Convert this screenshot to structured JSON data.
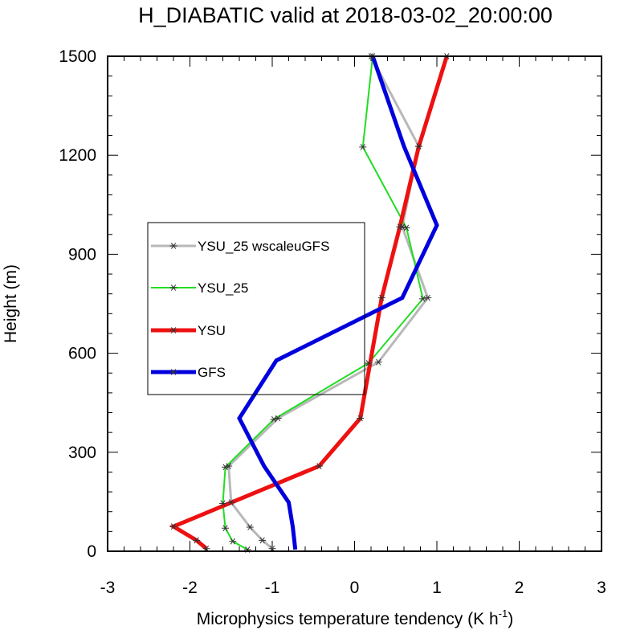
{
  "chart_data": {
    "type": "line",
    "title": "H_DIABATIC valid at 2018-03-02_20:00:00",
    "xlabel": "Microphysics temperature tendency (K h",
    "xlabel_sup": "-1",
    "xlabel_end": ")",
    "ylabel": "Height (m)",
    "xlim": [
      -3,
      3
    ],
    "ylim": [
      0,
      1500
    ],
    "xticks": [
      -3,
      -2,
      -1,
      0,
      1,
      2,
      3
    ],
    "xtick_labels": [
      "-3",
      "-2",
      "-1",
      "0",
      "1",
      "2",
      "3"
    ],
    "yticks": [
      0,
      300,
      600,
      900,
      1200,
      1500
    ],
    "ytick_labels": [
      "0",
      "300",
      "600",
      "900",
      "1200",
      "1500"
    ],
    "legend_position": "center-left",
    "series": [
      {
        "name": "YSU_25 wscaleuGFS",
        "color": "#b8b8b8",
        "width": 3,
        "markers": true,
        "points": [
          [
            -1.0,
            8
          ],
          [
            -1.12,
            33
          ],
          [
            -1.27,
            73
          ],
          [
            -1.5,
            148
          ],
          [
            -1.53,
            258
          ],
          [
            -0.93,
            403
          ],
          [
            0.29,
            573
          ],
          [
            0.89,
            768
          ],
          [
            0.58,
            983
          ],
          [
            0.78,
            1227
          ],
          [
            0.2,
            1500
          ]
        ]
      },
      {
        "name": "YSU_25",
        "color": "#22dd22",
        "width": 2,
        "markers": true,
        "points": [
          [
            -1.3,
            5
          ],
          [
            -1.48,
            30
          ],
          [
            -1.57,
            70
          ],
          [
            -1.6,
            145
          ],
          [
            -1.57,
            255
          ],
          [
            -0.98,
            400
          ],
          [
            0.17,
            570
          ],
          [
            0.83,
            765
          ],
          [
            0.63,
            980
          ],
          [
            0.1,
            1225
          ],
          [
            0.22,
            1500
          ]
        ]
      },
      {
        "name": "YSU",
        "color": "#ee1111",
        "width": 5,
        "markers": true,
        "points": [
          [
            -1.8,
            8
          ],
          [
            -1.92,
            33
          ],
          [
            -2.2,
            75
          ],
          [
            -0.43,
            258
          ],
          [
            0.07,
            403
          ],
          [
            0.33,
            768
          ],
          [
            0.55,
            983
          ],
          [
            0.78,
            1227
          ],
          [
            1.12,
            1500
          ]
        ]
      },
      {
        "name": "GFS",
        "color": "#0000dd",
        "width": 5,
        "markers": false,
        "points": [
          [
            -0.72,
            5
          ],
          [
            -0.75,
            73
          ],
          [
            -0.8,
            148
          ],
          [
            -1.1,
            258
          ],
          [
            -1.4,
            403
          ],
          [
            -0.95,
            578
          ],
          [
            0.58,
            768
          ],
          [
            1.0,
            988
          ],
          [
            0.6,
            1227
          ],
          [
            0.22,
            1500
          ]
        ]
      }
    ]
  }
}
